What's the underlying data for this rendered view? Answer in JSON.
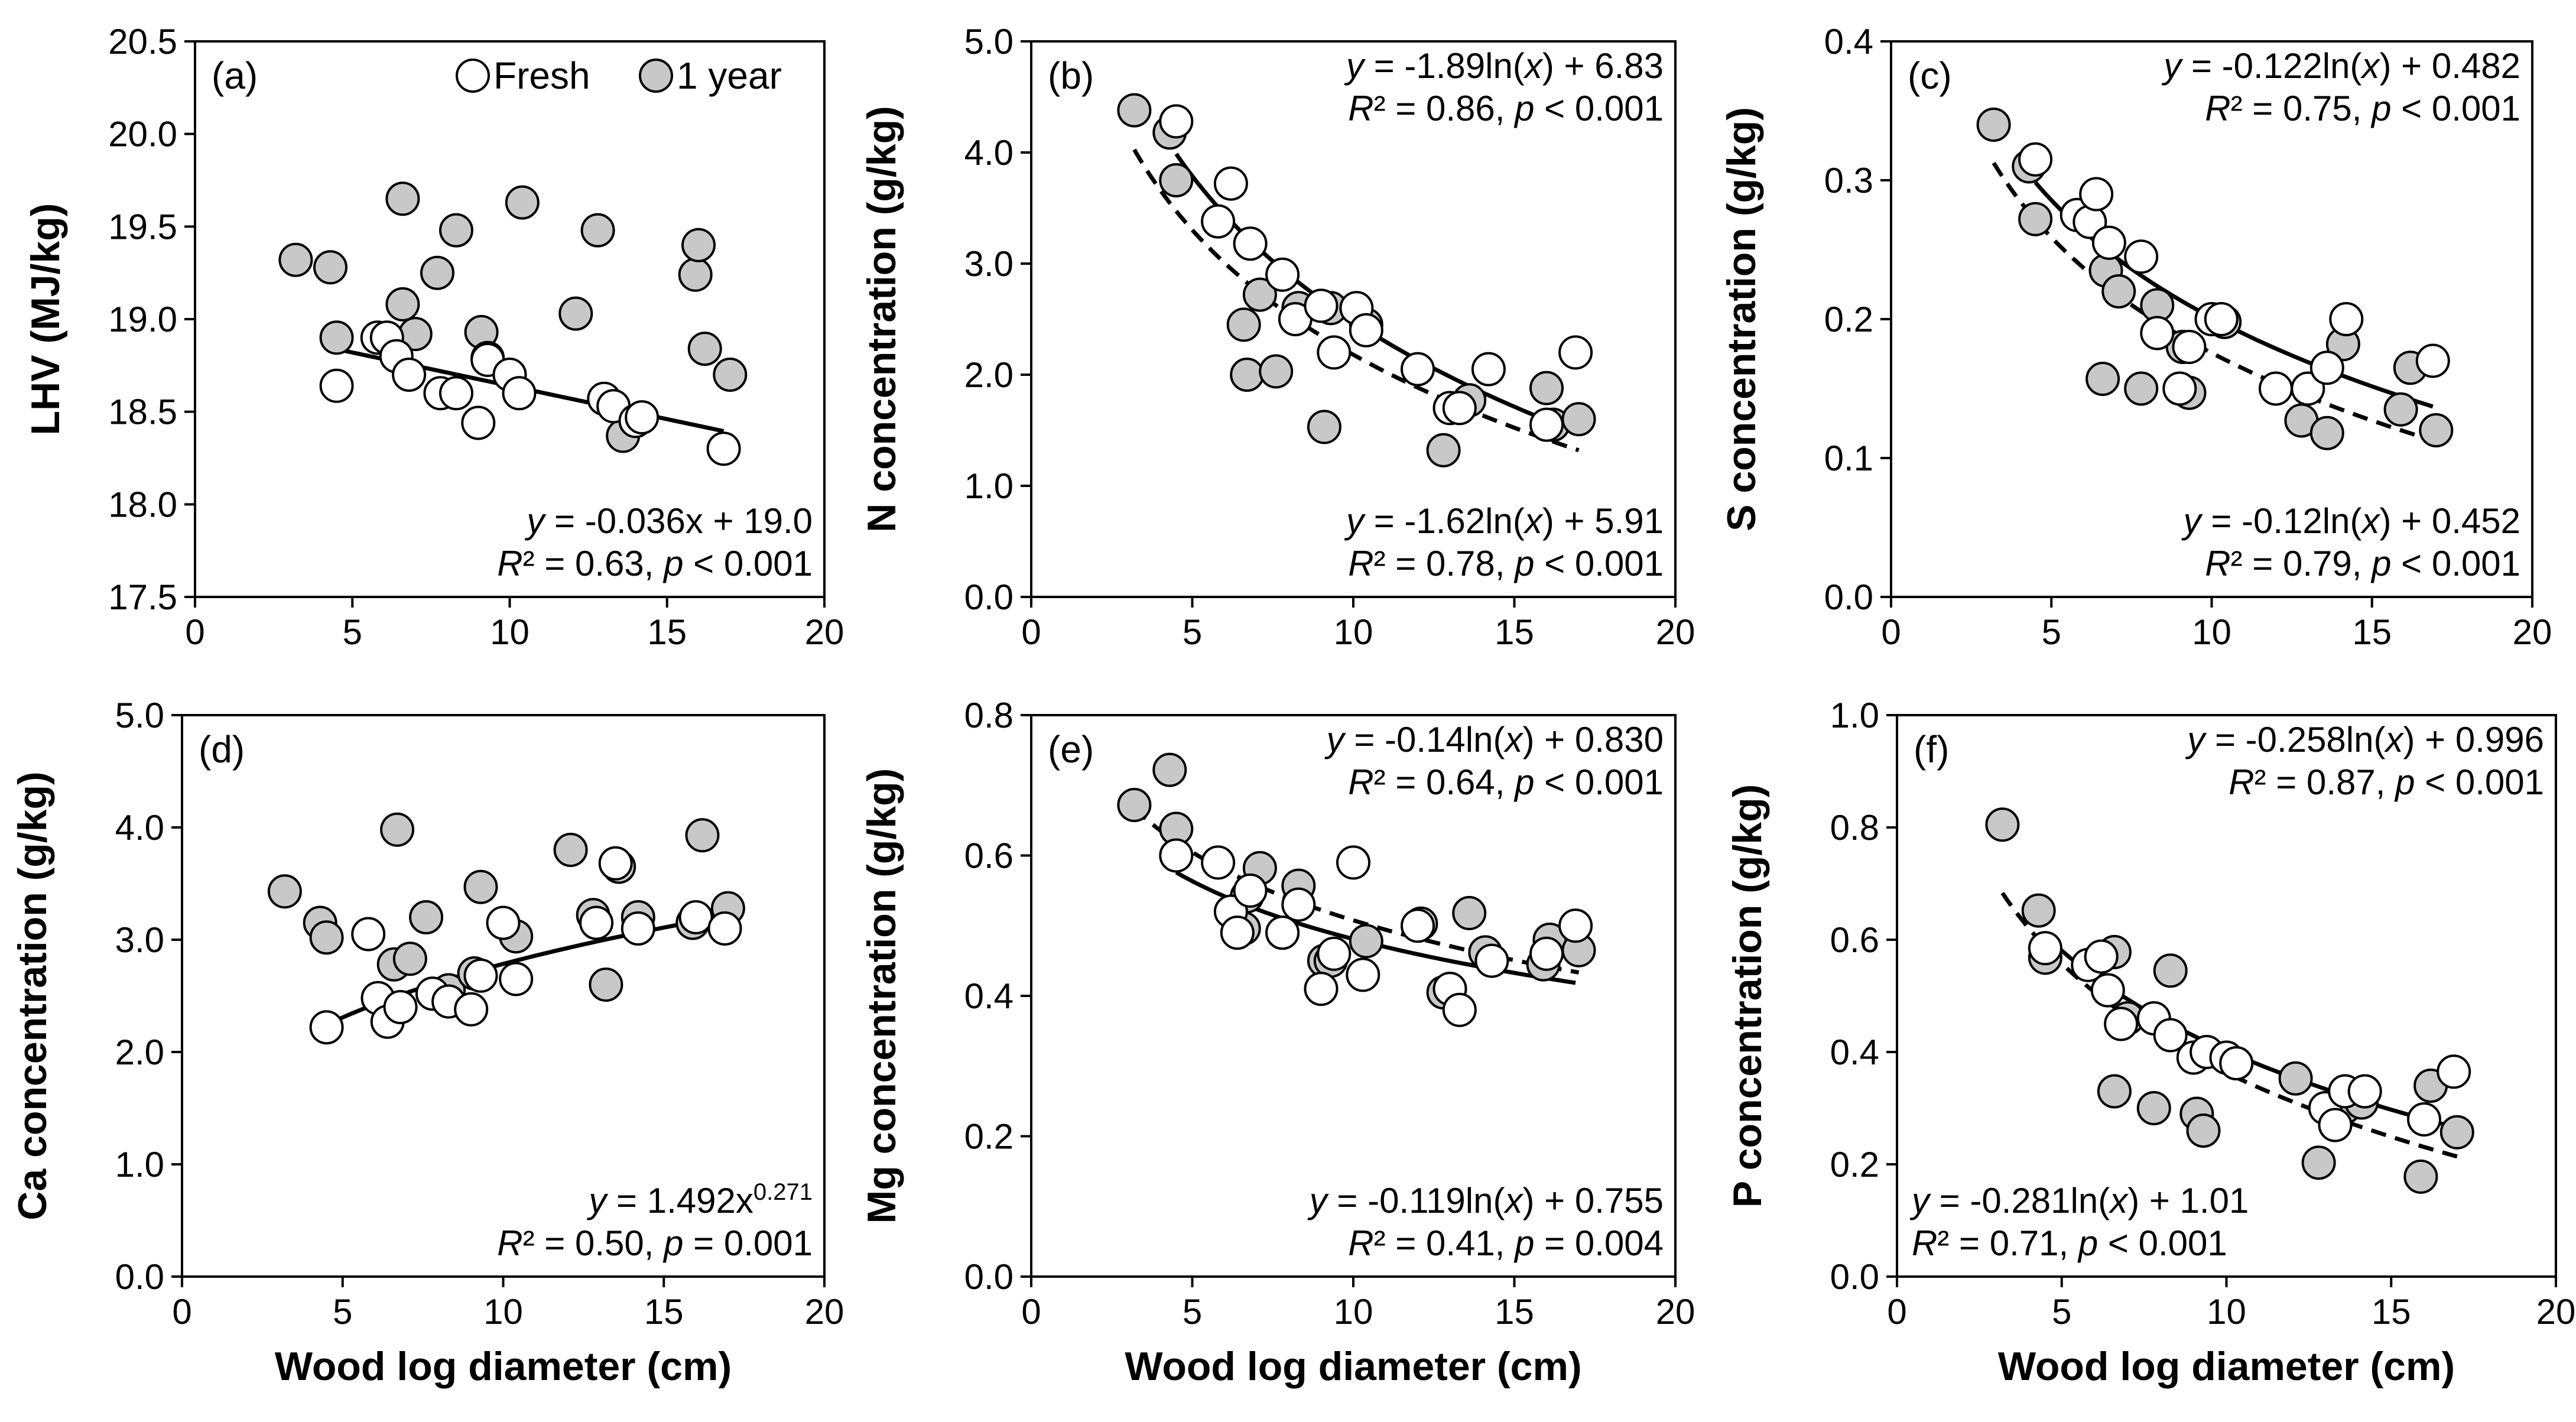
{
  "figure": {
    "legend": {
      "fresh_label": "Fresh",
      "aged_label": "1 year",
      "fresh_color": "#ffffff",
      "aged_color": "#c8c8c8",
      "placement": "top-right of panel (a)"
    }
  },
  "chart_data": [
    {
      "id": "a",
      "panel_label": "(a)",
      "type": "scatter",
      "xlabel": "",
      "ylabel": "LHV (MJ/kg)",
      "xlim": [
        0,
        20
      ],
      "ylim": [
        17.5,
        20.5
      ],
      "xticks": [
        0,
        5,
        10,
        15,
        20
      ],
      "xtick_labels": [
        "0",
        "5",
        "10",
        "15",
        "20"
      ],
      "yticks": [
        17.5,
        18.0,
        18.5,
        19.0,
        19.5,
        20.0,
        20.5
      ],
      "ytick_labels": [
        "17.5",
        "18.0",
        "18.5",
        "19.0",
        "19.5",
        "20.0",
        "20.5"
      ],
      "series": [
        {
          "name": "Fresh",
          "x": [
            4.5,
            5.8,
            6.1,
            6.4,
            6.8,
            7.8,
            8.3,
            9.0,
            9.3,
            10.0,
            10.3,
            13.0,
            13.3,
            14.0,
            14.2,
            16.8
          ],
          "y": [
            18.64,
            18.9,
            18.9,
            18.8,
            18.7,
            18.6,
            18.6,
            18.44,
            18.78,
            18.7,
            18.6,
            18.57,
            18.53,
            18.45,
            18.47,
            18.3
          ]
        },
        {
          "name": "1 year",
          "x": [
            3.2,
            4.3,
            4.5,
            6.6,
            6.6,
            7.0,
            7.7,
            8.3,
            9.1,
            9.3,
            10.4,
            12.1,
            12.8,
            13.6,
            15.9,
            16.0,
            16.2,
            17.0
          ],
          "y": [
            19.32,
            19.28,
            18.9,
            19.65,
            19.08,
            18.92,
            19.25,
            19.48,
            18.93,
            18.79,
            19.63,
            19.03,
            19.48,
            18.37,
            19.24,
            19.4,
            18.84,
            18.7
          ]
        }
      ],
      "fits": [
        {
          "series": "Fresh",
          "style": "solid",
          "form": "linear",
          "a": -0.036,
          "b": 19.0,
          "x_range": [
            4.5,
            16.8
          ],
          "equation_label": "y = -0.036x + 19.0",
          "stats_label": "R² = 0.63, p < 0.001",
          "label_position": "bottom-right"
        }
      ]
    },
    {
      "id": "b",
      "panel_label": "(b)",
      "type": "scatter",
      "xlabel": "",
      "ylabel": "N concentration (g/kg)",
      "xlim": [
        0,
        20
      ],
      "ylim": [
        0.0,
        5.0
      ],
      "xticks": [
        0,
        5,
        10,
        15,
        20
      ],
      "xtick_labels": [
        "0",
        "5",
        "10",
        "15",
        "20"
      ],
      "yticks": [
        0,
        1,
        2,
        3,
        4,
        5
      ],
      "ytick_labels": [
        "0.0",
        "1.0",
        "2.0",
        "3.0",
        "4.0",
        "5.0"
      ],
      "series": [
        {
          "name": "Fresh",
          "x": [
            4.5,
            5.8,
            6.2,
            6.8,
            7.8,
            8.2,
            9.0,
            9.4,
            10.1,
            10.4,
            12.0,
            13.0,
            13.3,
            14.2,
            16.0,
            16.9
          ],
          "y": [
            4.28,
            3.38,
            3.72,
            3.18,
            2.9,
            2.5,
            2.62,
            2.2,
            2.6,
            2.4,
            2.05,
            1.7,
            1.7,
            2.05,
            1.55,
            2.2
          ]
        },
        {
          "name": "1 year",
          "x": [
            3.2,
            4.3,
            4.5,
            6.6,
            6.7,
            7.1,
            7.6,
            8.3,
            9.1,
            9.3,
            10.4,
            12.8,
            13.6,
            16.0,
            16.2,
            17.0
          ],
          "y": [
            4.38,
            4.18,
            3.75,
            2.45,
            2.0,
            2.72,
            2.03,
            2.6,
            1.53,
            2.6,
            2.45,
            1.32,
            1.77,
            1.88,
            1.55,
            1.6
          ]
        }
      ],
      "fits": [
        {
          "series": "Fresh",
          "style": "solid",
          "form": "log",
          "a": -1.89,
          "b": 6.83,
          "x_range": [
            4.5,
            16.9
          ],
          "equation_label": "y = -1.89ln(x) + 6.83",
          "stats_label": "R² = 0.86, p < 0.001",
          "label_position": "top-right"
        },
        {
          "series": "1 year",
          "style": "dashed",
          "form": "log",
          "a": -1.62,
          "b": 5.91,
          "x_range": [
            3.2,
            17.0
          ],
          "equation_label": "y = -1.62ln(x) + 5.91",
          "stats_label": "R² = 0.78, p < 0.001",
          "label_position": "bottom-right"
        }
      ]
    },
    {
      "id": "c",
      "panel_label": "(c)",
      "type": "scatter",
      "xlabel": "",
      "ylabel": "S concentration (g/kg)",
      "xlim": [
        0,
        20
      ],
      "ylim": [
        0.0,
        0.4
      ],
      "xticks": [
        0,
        5,
        10,
        15,
        20
      ],
      "xtick_labels": [
        "0",
        "5",
        "10",
        "15",
        "20"
      ],
      "yticks": [
        0,
        0.1,
        0.2,
        0.3,
        0.4
      ],
      "ytick_labels": [
        "0.0",
        "0.1",
        "0.2",
        "0.3",
        "0.4"
      ],
      "series": [
        {
          "name": "Fresh",
          "x": [
            4.5,
            5.8,
            6.2,
            6.4,
            6.8,
            7.8,
            8.3,
            9.0,
            9.3,
            10.0,
            10.3,
            12.0,
            13.0,
            13.6,
            14.2,
            16.9
          ],
          "y": [
            0.315,
            0.275,
            0.27,
            0.29,
            0.255,
            0.245,
            0.19,
            0.15,
            0.18,
            0.2,
            0.2,
            0.15,
            0.15,
            0.165,
            0.2,
            0.17
          ]
        },
        {
          "name": "1 year",
          "x": [
            3.2,
            4.3,
            4.5,
            6.6,
            6.7,
            7.1,
            7.8,
            8.3,
            9.1,
            9.3,
            10.4,
            12.8,
            13.6,
            14.1,
            15.9,
            16.2,
            17.0
          ],
          "y": [
            0.34,
            0.31,
            0.272,
            0.157,
            0.235,
            0.22,
            0.15,
            0.21,
            0.18,
            0.147,
            0.198,
            0.127,
            0.118,
            0.182,
            0.135,
            0.165,
            0.12
          ]
        }
      ],
      "fits": [
        {
          "series": "Fresh",
          "style": "solid",
          "form": "log",
          "a": -0.122,
          "b": 0.482,
          "x_range": [
            4.5,
            16.9
          ],
          "equation_label": "y = -0.122ln(x) + 0.482",
          "stats_label": "R² = 0.75, p < 0.001",
          "label_position": "top-right"
        },
        {
          "series": "1 year",
          "style": "dashed",
          "form": "log",
          "a": -0.12,
          "b": 0.452,
          "x_range": [
            3.2,
            17.0
          ],
          "equation_label": "y = -0.12ln(x) + 0.452",
          "stats_label": "R² = 0.79, p < 0.001",
          "label_position": "bottom-right"
        }
      ]
    },
    {
      "id": "d",
      "panel_label": "(d)",
      "type": "scatter",
      "xlabel": "Wood log diameter (cm)",
      "ylabel": "Ca concentration (g/kg)",
      "xlim": [
        0,
        20
      ],
      "ylim": [
        0.0,
        5.0
      ],
      "xticks": [
        0,
        5,
        10,
        15,
        20
      ],
      "xtick_labels": [
        "0",
        "5",
        "10",
        "15",
        "20"
      ],
      "yticks": [
        0,
        1,
        2,
        3,
        4,
        5
      ],
      "ytick_labels": [
        "0.0",
        "1.0",
        "2.0",
        "3.0",
        "4.0",
        "5.0"
      ],
      "series": [
        {
          "name": "Fresh",
          "x": [
            4.5,
            5.8,
            6.1,
            6.4,
            6.8,
            7.8,
            8.3,
            9.0,
            9.3,
            10.0,
            10.4,
            12.9,
            13.5,
            14.2,
            16.0,
            16.9
          ],
          "y": [
            2.22,
            3.05,
            2.48,
            2.27,
            2.4,
            2.52,
            2.45,
            2.38,
            2.68,
            3.15,
            2.65,
            3.15,
            3.68,
            3.1,
            3.2,
            3.1
          ]
        },
        {
          "name": "1 year",
          "x": [
            3.2,
            4.3,
            4.5,
            6.6,
            6.7,
            7.1,
            7.6,
            8.3,
            9.1,
            9.3,
            10.4,
            12.1,
            12.8,
            13.2,
            13.6,
            14.2,
            15.9,
            16.2,
            17.0
          ],
          "y": [
            3.43,
            3.15,
            3.02,
            2.78,
            3.98,
            2.83,
            3.2,
            2.55,
            2.7,
            3.47,
            3.03,
            3.8,
            3.22,
            2.6,
            3.65,
            3.2,
            3.15,
            3.93,
            3.28
          ]
        }
      ],
      "fits": [
        {
          "series": "Fresh",
          "style": "solid",
          "form": "power",
          "a": 1.492,
          "b": 0.271,
          "x_range": [
            4.5,
            16.9
          ],
          "equation_label": "y = 1.492x^0.271",
          "stats_label": "R² = 0.50, p = 0.001",
          "label_position": "bottom-right"
        }
      ]
    },
    {
      "id": "e",
      "panel_label": "(e)",
      "type": "scatter",
      "xlabel": "Wood log diameter (cm)",
      "ylabel": "Mg concentration (g/kg)",
      "xlim": [
        0,
        20
      ],
      "ylim": [
        0.0,
        0.8
      ],
      "xticks": [
        0,
        5,
        10,
        15,
        20
      ],
      "xtick_labels": [
        "0",
        "5",
        "10",
        "15",
        "20"
      ],
      "yticks": [
        0,
        0.2,
        0.4,
        0.6,
        0.8
      ],
      "ytick_labels": [
        "0.0",
        "0.2",
        "0.4",
        "0.6",
        "0.8"
      ],
      "series": [
        {
          "name": "Fresh",
          "x": [
            4.5,
            5.8,
            6.2,
            6.4,
            6.8,
            7.8,
            8.3,
            9.0,
            9.4,
            10.0,
            10.3,
            12.0,
            13.0,
            13.3,
            14.3,
            16.0,
            16.9
          ],
          "y": [
            0.6,
            0.59,
            0.52,
            0.49,
            0.55,
            0.49,
            0.53,
            0.41,
            0.46,
            0.59,
            0.43,
            0.5,
            0.41,
            0.38,
            0.45,
            0.46,
            0.5
          ]
        },
        {
          "name": "1 year",
          "x": [
            3.2,
            4.3,
            4.5,
            6.6,
            6.7,
            7.1,
            7.8,
            8.3,
            9.1,
            9.3,
            10.4,
            12.1,
            12.8,
            13.6,
            14.1,
            15.9,
            16.1,
            17.0
          ],
          "y": [
            0.672,
            0.722,
            0.638,
            0.496,
            0.542,
            0.582,
            0.49,
            0.557,
            0.45,
            0.45,
            0.478,
            0.503,
            0.405,
            0.518,
            0.462,
            0.445,
            0.48,
            0.465
          ]
        }
      ],
      "fits": [
        {
          "series": "Fresh",
          "style": "solid",
          "form": "log",
          "a": -0.119,
          "b": 0.755,
          "x_range": [
            4.5,
            16.9
          ],
          "equation_label": "y = -0.119ln(x) + 0.755",
          "stats_label": "R² = 0.41, p = 0.004",
          "label_position": "bottom-right"
        },
        {
          "series": "1 year",
          "style": "dashed",
          "form": "log",
          "a": -0.14,
          "b": 0.83,
          "x_range": [
            3.2,
            17.0
          ],
          "equation_label": "y = -0.14ln(x) + 0.830",
          "stats_label": "R² = 0.64, p < 0.001",
          "label_position": "top-right"
        }
      ]
    },
    {
      "id": "f",
      "panel_label": "(f)",
      "type": "scatter",
      "xlabel": "Wood log diameter (cm)",
      "ylabel": "P concentration (g/kg)",
      "xlim": [
        0,
        20
      ],
      "ylim": [
        0.0,
        1.0
      ],
      "xticks": [
        0,
        5,
        10,
        15,
        20
      ],
      "xtick_labels": [
        "0",
        "5",
        "10",
        "15",
        "20"
      ],
      "yticks": [
        0,
        0.2,
        0.4,
        0.6,
        0.8,
        1.0
      ],
      "ytick_labels": [
        "0.0",
        "0.2",
        "0.4",
        "0.6",
        "0.8",
        "1.0"
      ],
      "series": [
        {
          "name": "Fresh",
          "x": [
            4.5,
            5.8,
            6.2,
            6.4,
            6.8,
            7.8,
            8.3,
            9.0,
            9.4,
            10.0,
            10.3,
            13.0,
            13.3,
            13.6,
            14.2,
            16.0,
            16.9
          ],
          "y": [
            0.585,
            0.555,
            0.57,
            0.51,
            0.45,
            0.46,
            0.43,
            0.39,
            0.4,
            0.39,
            0.38,
            0.3,
            0.27,
            0.33,
            0.33,
            0.28,
            0.365
          ]
        },
        {
          "name": "1 year",
          "x": [
            3.2,
            4.3,
            4.5,
            6.6,
            6.6,
            7.0,
            7.8,
            8.3,
            9.1,
            9.3,
            10.3,
            12.1,
            12.8,
            13.6,
            14.1,
            15.9,
            16.2,
            17.0
          ],
          "y": [
            0.805,
            0.652,
            0.568,
            0.578,
            0.33,
            0.46,
            0.3,
            0.545,
            0.29,
            0.26,
            0.38,
            0.353,
            0.203,
            0.302,
            0.31,
            0.178,
            0.34,
            0.257
          ]
        }
      ],
      "fits": [
        {
          "series": "Fresh",
          "style": "solid",
          "form": "log",
          "a": -0.258,
          "b": 0.996,
          "x_range": [
            4.5,
            16.9
          ],
          "equation_label": "y = -0.258ln(x) + 0.996",
          "stats_label": "R² = 0.87, p < 0.001",
          "label_position": "top-right"
        },
        {
          "series": "1 year",
          "style": "dashed",
          "form": "log",
          "a": -0.281,
          "b": 1.01,
          "x_range": [
            3.2,
            17.0
          ],
          "equation_label": "y = -0.281ln(x) + 1.01",
          "stats_label": "R² = 0.71, p < 0.001",
          "label_position": "bottom-left"
        }
      ]
    }
  ]
}
